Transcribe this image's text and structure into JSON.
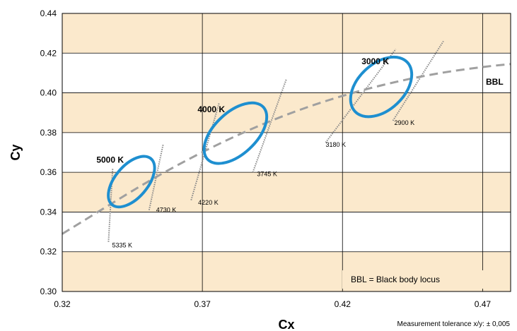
{
  "chart_data": {
    "type": "scatter",
    "xlabel": "Cx",
    "ylabel": "Cy",
    "xlim": [
      0.32,
      0.48
    ],
    "ylim": [
      0.3,
      0.44
    ],
    "xticks": [
      "0.32",
      "0.37",
      "0.42",
      "0.47"
    ],
    "yticks": [
      "0.30",
      "0.32",
      "0.34",
      "0.36",
      "0.38",
      "0.40",
      "0.42",
      "0.44"
    ],
    "band_color": "#fbe9cc",
    "ellipse_color": "#1e8fd0",
    "locus_color": "#a0a0a0",
    "ellipses": [
      {
        "label": "5000 K",
        "center": [
          0.3447,
          0.3553
        ],
        "semi_major": 0.0135,
        "semi_minor": 0.0053,
        "angle_deg": 59
      },
      {
        "label": "4000 K",
        "center": [
          0.3818,
          0.3797
        ],
        "semi_major": 0.0165,
        "semi_minor": 0.0068,
        "angle_deg": 53
      },
      {
        "label": "3000 K",
        "center": [
          0.4338,
          0.403
        ],
        "semi_major": 0.0155,
        "semi_minor": 0.0075,
        "angle_deg": 53
      }
    ],
    "black_body_locus": {
      "name": "BBL",
      "x": [
        0.32,
        0.335,
        0.35,
        0.365,
        0.38,
        0.395,
        0.41,
        0.425,
        0.44,
        0.455,
        0.47,
        0.48
      ],
      "y": [
        0.329,
        0.342,
        0.3548,
        0.3665,
        0.377,
        0.3862,
        0.394,
        0.4005,
        0.4058,
        0.41,
        0.413,
        0.4145
      ]
    },
    "isotemperature_lines": [
      {
        "label": "5335 K",
        "x1": 0.3365,
        "y1": 0.325,
        "x2": 0.338,
        "y2": 0.362,
        "label_at": [
          0.3378,
          0.3236
        ]
      },
      {
        "label": "4730 K",
        "x1": 0.351,
        "y1": 0.341,
        "x2": 0.356,
        "y2": 0.374,
        "label_at": [
          0.3535,
          0.3414
        ]
      },
      {
        "label": "4220 K",
        "x1": 0.366,
        "y1": 0.346,
        "x2": 0.376,
        "y2": 0.395,
        "label_at": [
          0.3685,
          0.3451
        ]
      },
      {
        "label": "3745 K",
        "x1": 0.388,
        "y1": 0.36,
        "x2": 0.4,
        "y2": 0.407,
        "label_at": [
          0.3895,
          0.3595
        ]
      },
      {
        "label": "3180 K",
        "x1": 0.414,
        "y1": 0.375,
        "x2": 0.439,
        "y2": 0.422,
        "label_at": [
          0.414,
          0.3743
        ]
      },
      {
        "label": "2900 K",
        "x1": 0.438,
        "y1": 0.386,
        "x2": 0.456,
        "y2": 0.426,
        "label_at": [
          0.4385,
          0.3853
        ]
      }
    ],
    "annotation": "BBL = Black body locus"
  },
  "footer_note": "Measurement tolerance x/y: ± 0,005"
}
